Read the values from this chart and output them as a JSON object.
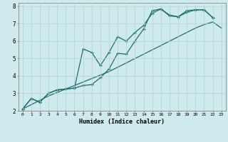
{
  "xlabel": "Humidex (Indice chaleur)",
  "background_color": "#ceeaec",
  "grid_color": "#b0d4d6",
  "line_color": "#1e6e6e",
  "xlim": [
    -0.5,
    23.5
  ],
  "ylim": [
    2,
    8.2
  ],
  "xticks": [
    0,
    1,
    2,
    3,
    4,
    5,
    6,
    7,
    8,
    9,
    10,
    11,
    12,
    13,
    14,
    15,
    16,
    17,
    18,
    19,
    20,
    21,
    22,
    23
  ],
  "yticks": [
    2,
    3,
    4,
    5,
    6,
    7,
    8
  ],
  "line1_x": [
    0,
    1,
    2,
    3,
    4,
    5,
    6,
    7,
    8,
    9,
    10,
    11,
    12,
    13,
    14,
    15,
    16,
    17,
    18,
    19,
    20,
    21,
    22,
    23
  ],
  "line1_y": [
    2.1,
    2.35,
    2.6,
    2.85,
    3.05,
    3.25,
    3.45,
    3.65,
    3.85,
    4.05,
    4.25,
    4.5,
    4.75,
    5.0,
    5.25,
    5.5,
    5.75,
    6.0,
    6.25,
    6.5,
    6.75,
    6.95,
    7.1,
    6.75
  ],
  "line2_x": [
    0,
    1,
    2,
    3,
    4,
    5,
    6,
    7,
    8,
    9,
    10,
    11,
    12,
    13,
    14,
    15,
    16,
    17,
    18,
    19,
    20,
    21,
    22
  ],
  "line2_y": [
    2.1,
    2.7,
    2.5,
    3.0,
    3.2,
    3.25,
    3.3,
    3.45,
    3.5,
    3.9,
    4.4,
    5.3,
    5.25,
    6.0,
    6.7,
    7.75,
    7.85,
    7.5,
    7.4,
    7.75,
    7.8,
    7.8,
    7.35
  ],
  "line3_x": [
    0,
    1,
    2,
    3,
    4,
    5,
    6,
    7,
    8,
    9,
    10,
    11,
    12,
    13,
    14,
    15,
    16,
    17,
    18,
    19,
    20,
    21,
    22
  ],
  "line3_y": [
    2.1,
    2.7,
    2.5,
    3.0,
    3.2,
    3.25,
    3.3,
    5.55,
    5.35,
    4.6,
    5.35,
    6.25,
    6.0,
    6.5,
    6.9,
    7.6,
    7.85,
    7.45,
    7.4,
    7.65,
    7.8,
    7.8,
    7.35
  ]
}
